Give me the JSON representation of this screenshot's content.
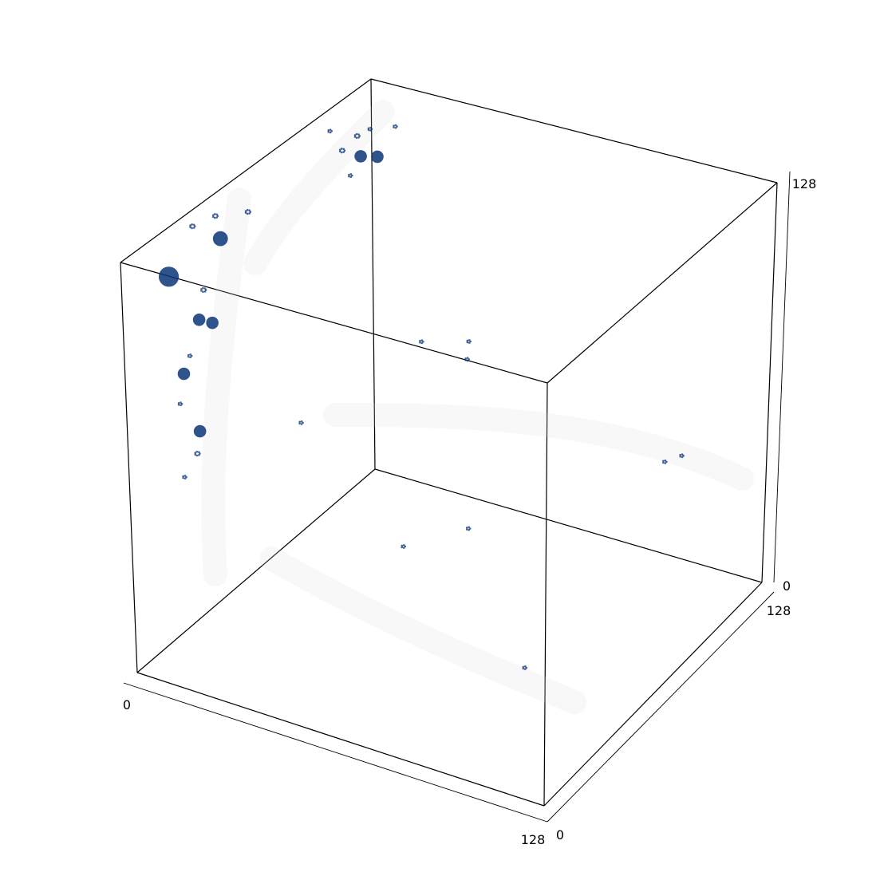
{
  "chart_data": {
    "type": "scatter",
    "subtype": "3d-voxel-blobs",
    "title": "",
    "axes": {
      "x": {
        "label": "",
        "range": [
          0,
          128
        ],
        "tick_labels": [
          "0",
          "128"
        ]
      },
      "y": {
        "label": "",
        "range": [
          0,
          128
        ],
        "tick_labels": [
          "0",
          "128"
        ]
      },
      "z": {
        "label": "",
        "range": [
          0,
          128
        ],
        "tick_labels": [
          "0",
          "128"
        ]
      }
    },
    "grid": false,
    "box": true,
    "marker_color": "#0b3577",
    "faint_color": "#d8d8d8",
    "points": [
      {
        "x": 15,
        "y": 98,
        "z": 121,
        "size": 3
      },
      {
        "x": 8,
        "y": 100,
        "z": 120,
        "size": 2
      },
      {
        "x": 19,
        "y": 100,
        "z": 121,
        "size": 3
      },
      {
        "x": 3,
        "y": 102,
        "z": 124,
        "size": 1
      },
      {
        "x": 6,
        "y": 111,
        "z": 119,
        "size": 2
      },
      {
        "x": 8,
        "y": 104,
        "z": 110,
        "size": 1
      },
      {
        "x": 10,
        "y": 124,
        "z": 117,
        "size": 1
      },
      {
        "x": 2,
        "y": 124,
        "z": 114,
        "size": 1
      },
      {
        "x": 4,
        "y": 30,
        "z": 127,
        "size": 2
      },
      {
        "x": 5,
        "y": 40,
        "z": 126,
        "size": 2
      },
      {
        "x": 10,
        "y": 34,
        "z": 123,
        "size": 4
      },
      {
        "x": 12,
        "y": 45,
        "z": 127,
        "size": 2
      },
      {
        "x": 6,
        "y": 14,
        "z": 119,
        "size": 6
      },
      {
        "x": 8,
        "y": 28,
        "z": 109,
        "size": 2
      },
      {
        "x": 10,
        "y": 22,
        "z": 103,
        "size": 3
      },
      {
        "x": 11,
        "y": 27,
        "z": 100,
        "size": 3
      },
      {
        "x": 8,
        "y": 20,
        "z": 92,
        "size": 1
      },
      {
        "x": 9,
        "y": 15,
        "z": 89,
        "size": 3
      },
      {
        "x": 13,
        "y": 6,
        "z": 85,
        "size": 1
      },
      {
        "x": 14,
        "y": 14,
        "z": 73,
        "size": 3
      },
      {
        "x": 16,
        "y": 9,
        "z": 69,
        "size": 2
      },
      {
        "x": 16,
        "y": 2,
        "z": 65,
        "size": 1
      },
      {
        "x": 45,
        "y": 79,
        "z": 79,
        "size": 1
      },
      {
        "x": 57,
        "y": 84,
        "z": 80,
        "size": 1
      },
      {
        "x": 80,
        "y": 43,
        "z": 101,
        "size": 1
      },
      {
        "x": 111,
        "y": 109,
        "z": 46,
        "size": 1
      },
      {
        "x": 110,
        "y": 101,
        "z": 48,
        "size": 1
      },
      {
        "x": 30,
        "y": 40,
        "z": 68,
        "size": 1
      },
      {
        "x": 50,
        "y": 60,
        "z": 25,
        "size": 1
      },
      {
        "x": 65,
        "y": 70,
        "z": 30,
        "size": 1
      },
      {
        "x": 90,
        "y": 58,
        "z": 0,
        "size": 1
      }
    ]
  }
}
